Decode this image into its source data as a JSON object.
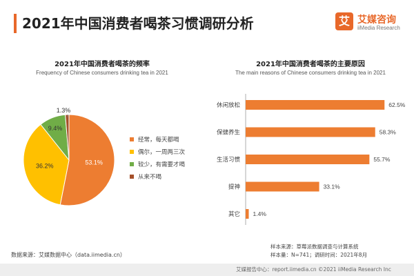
{
  "header": {
    "title": "2021年中国消费者喝茶习惯调研分析"
  },
  "logo": {
    "mark": "艾",
    "name": "艾媒咨询",
    "sub": "iiMedia Research"
  },
  "colors": {
    "accent": "#E8682A",
    "orange": "#ED7D31",
    "yellow": "#FFC000",
    "green": "#70AD47",
    "brown": "#A5502A"
  },
  "chart_data": [
    {
      "type": "pie",
      "title": "2021年中国消费者喝茶的频率",
      "subtitle": "Frequency of Chinese consumers drinking tea in 2021",
      "slices": [
        {
          "label": "经常，每天都喝",
          "value": 53.1,
          "display": "53.1%",
          "color": "#ED7D31"
        },
        {
          "label": "偶尔，一周两三次",
          "value": 36.2,
          "display": "36.2%",
          "color": "#FFC000"
        },
        {
          "label": "较少，有需要才喝",
          "value": 9.4,
          "display": "9.4%",
          "color": "#70AD47"
        },
        {
          "label": "从来不喝",
          "value": 1.3,
          "display": "1.3%",
          "color": "#A5502A"
        }
      ],
      "legend_position": "right"
    },
    {
      "type": "bar",
      "orientation": "horizontal",
      "title": "2021年中国消费者喝茶的主要原因",
      "subtitle": "The main reasons of Chinese consumers drinking tea in 2021",
      "categories": [
        "休闲放松",
        "保健养生",
        "生活习惯",
        "提神",
        "其它"
      ],
      "values": [
        62.5,
        58.3,
        55.7,
        33.1,
        1.4
      ],
      "value_labels": [
        "62.5%",
        "58.3%",
        "55.7%",
        "33.1%",
        "1.4%"
      ],
      "unit": "%",
      "xlim": [
        0,
        100
      ],
      "color": "#ED7D31",
      "grid": false
    }
  ],
  "footer": {
    "source_left": "数据来源：艾媒数据中心（data.iimedia.cn）",
    "sample_source": "样本来源：草莓派数据调查与计算系统",
    "sample_info": "样本量：N=741；调研时间：2021年8月",
    "bottom_text": "艾媒报告中心：report.iimedia.cn    ©2021  iiMedia Research  Inc"
  }
}
